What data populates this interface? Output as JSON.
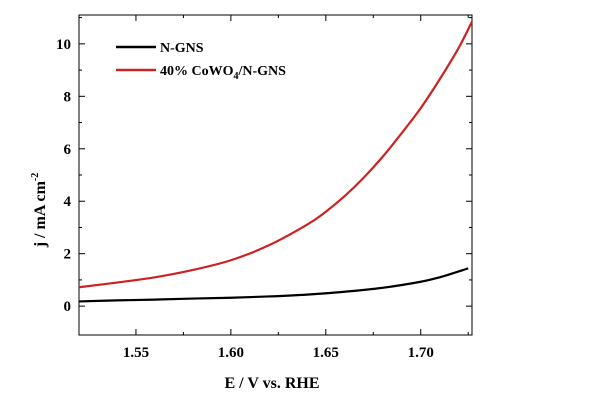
{
  "chart_data": {
    "type": "line",
    "xlabel": "E / V vs. RHE",
    "ylabel": "j / mA cm",
    "ylabel_superscript": "-2",
    "xlim": [
      1.52,
      1.727
    ],
    "ylim": [
      -1.1,
      11.1
    ],
    "xticks": [
      1.55,
      1.6,
      1.65,
      1.7
    ],
    "xtick_labels": [
      "1.55",
      "1.60",
      "1.65",
      "1.70"
    ],
    "yticks": [
      0,
      2,
      4,
      6,
      8,
      10
    ],
    "ytick_labels": [
      "0",
      "2",
      "4",
      "6",
      "8",
      "10"
    ],
    "grid": false,
    "legend_position": "top-left",
    "series": [
      {
        "name": "N-GNS",
        "legend_label": {
          "main": "N-GNS",
          "subscript": "",
          "suffix": ""
        },
        "color": "#000000",
        "x": [
          1.52,
          1.54,
          1.56,
          1.58,
          1.6,
          1.62,
          1.64,
          1.66,
          1.68,
          1.7,
          1.71,
          1.725
        ],
        "y": [
          0.18,
          0.22,
          0.25,
          0.29,
          0.32,
          0.37,
          0.44,
          0.55,
          0.7,
          0.93,
          1.1,
          1.44
        ]
      },
      {
        "name": "40% CoWO4/N-GNS",
        "legend_label": {
          "main": "40% CoWO",
          "subscript": "4",
          "suffix": "/N-GNS"
        },
        "color": "#cc2222",
        "x": [
          1.52,
          1.54,
          1.56,
          1.58,
          1.6,
          1.62,
          1.64,
          1.65,
          1.66,
          1.67,
          1.68,
          1.69,
          1.7,
          1.71,
          1.72,
          1.727
        ],
        "y": [
          0.72,
          0.9,
          1.1,
          1.38,
          1.75,
          2.32,
          3.1,
          3.6,
          4.2,
          4.9,
          5.7,
          6.6,
          7.55,
          8.65,
          9.85,
          10.85
        ]
      }
    ]
  }
}
